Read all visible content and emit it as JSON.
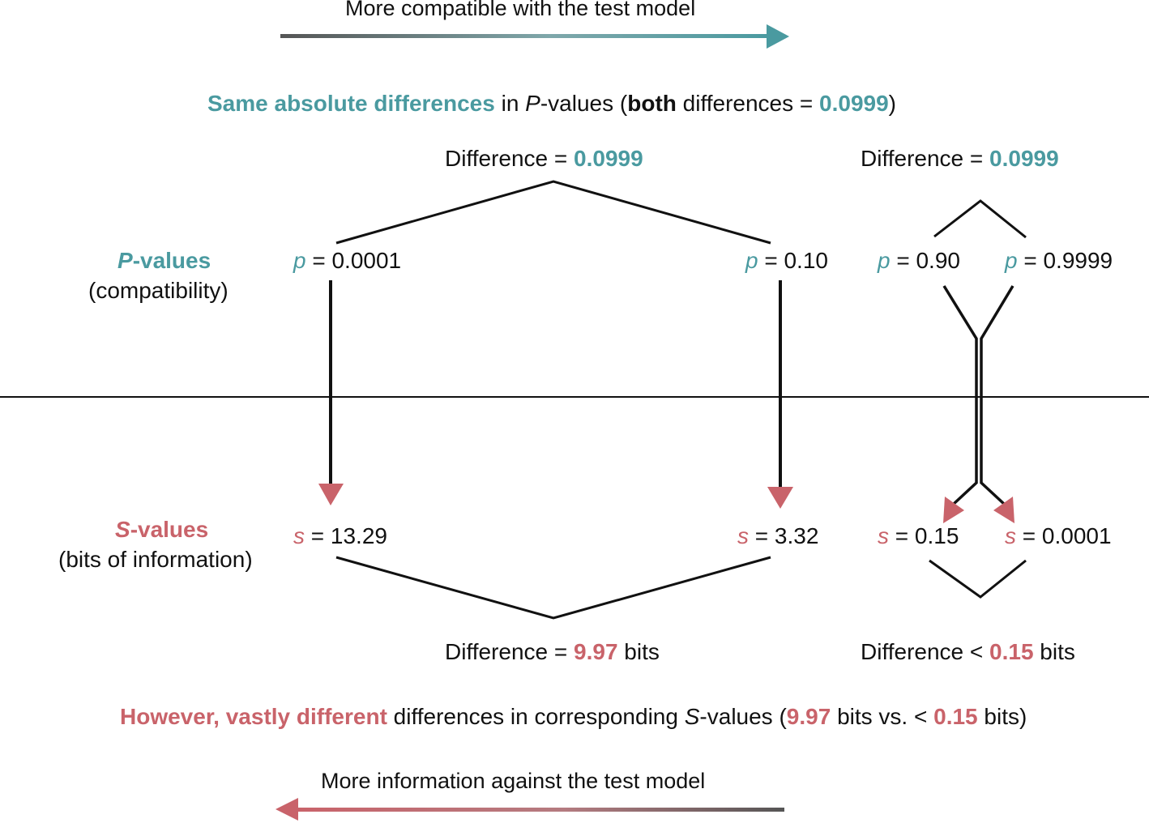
{
  "colors": {
    "teal": "#4a9aa0",
    "rose": "#c9636a",
    "gray": "#555555",
    "black": "#111111"
  },
  "top_arrow": {
    "label": "More compatible with the test model"
  },
  "bottom_arrow": {
    "label": "More information against the test model"
  },
  "headline_top": {
    "part1": "Same absolute differences",
    "part2": " in ",
    "part3": "P",
    "part4": "-values (",
    "part5": "both",
    "part6": " differences = ",
    "part7": "0.0999",
    "part8": ")"
  },
  "headline_bottom": {
    "part1": "However, vastly different",
    "part2": " differences in corresponding ",
    "part3": "S",
    "part4": "-values (",
    "part5": "9.97",
    "part6": " bits vs. < ",
    "part7": "0.15",
    "part8": " bits)"
  },
  "row_labels": {
    "p_letter": "P",
    "p_title_rest": "-values",
    "p_sub": "(compatibility)",
    "s_letter": "S",
    "s_title_rest": "-values",
    "s_sub": "(bits of information)"
  },
  "pairs": {
    "left": {
      "p_diff_label": "Difference = ",
      "p_diff_value": "0.0999",
      "p1_sym": "p",
      "p1_rest": " = 0.0001",
      "p2_sym": "p",
      "p2_rest": " = 0.10",
      "s1_sym": "s",
      "s1_rest": " = 13.29",
      "s2_sym": "s",
      "s2_rest": " = 3.32",
      "s_diff_label": "Difference = ",
      "s_diff_value": "9.97",
      "s_diff_unit": " bits"
    },
    "right": {
      "p_diff_label": "Difference = ",
      "p_diff_value": "0.0999",
      "p1_sym": "p",
      "p1_rest": " = 0.90",
      "p2_sym": "p",
      "p2_rest": " = 0.9999",
      "s1_sym": "s",
      "s1_rest": " = 0.15",
      "s2_sym": "s",
      "s2_rest": " = 0.0001",
      "s_diff_label": "Difference < ",
      "s_diff_value": "0.15",
      "s_diff_unit": " bits"
    }
  }
}
